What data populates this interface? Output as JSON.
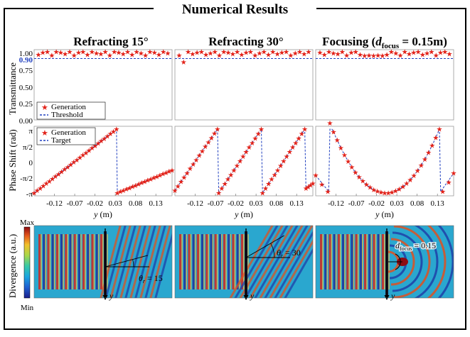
{
  "title": "Numerical Results",
  "columns": [
    {
      "title": "Refracting 15°"
    },
    {
      "title": "Refracting 30°"
    },
    {
      "title_main": "Focusing (",
      "title_sub": "focus",
      "title_rest": " = 0.15m)",
      "title_d": "d"
    }
  ],
  "transmittance": {
    "ylabel": "Transmittance",
    "yticks": [
      "0.00",
      "0.25",
      "0.50",
      "0.75",
      "1.00"
    ],
    "threshold_tick": "0.90",
    "threshold_value": 0.9,
    "legend": [
      "Generation",
      "Threshold"
    ],
    "colors": {
      "generation": "#e2231a",
      "threshold": "#1f3fbf"
    }
  },
  "phase": {
    "ylabel": "Phase Shift (rad)",
    "yticks": [
      "π",
      "π/2",
      "0",
      "-π/2",
      "-π"
    ],
    "legend": [
      "Generation",
      "Target"
    ],
    "xticks": [
      "-0.12",
      "-0.07",
      "-0.02",
      "0.03",
      "0.08",
      "0.13"
    ],
    "xlabel_var": "y",
    "xlabel_unit": " (m)"
  },
  "fields": {
    "colorbar_max": "Max",
    "colorbar_min": "Min",
    "colorbar_label": "Divergence (a.u.)",
    "axis_y": "y",
    "annotations": [
      {
        "theta": "θ",
        "sub": "r",
        "eq": " = 15"
      },
      {
        "theta": "θ",
        "sub": "r",
        "eq": " = 30"
      },
      {
        "d": "d",
        "sub": "focus",
        "eq": " = 0.15"
      }
    ]
  },
  "chart_data": [
    {
      "type": "scatter",
      "title": "Refracting 15° — Transmittance",
      "ylabel": "Transmittance",
      "ylim": [
        0,
        1
      ],
      "series": [
        {
          "name": "Generation",
          "values": [
            0.96,
            0.99,
            1.0,
            0.95,
            1.0,
            0.99,
            0.97,
            1.0,
            0.95,
            0.99,
            1.0,
            0.96,
            1.0,
            0.98,
            0.97,
            1.0,
            0.95,
            1.0,
            0.99,
            0.97,
            1.0,
            0.96,
            1.0,
            0.98,
            0.95,
            1.0,
            0.99,
            0.96,
            1.0,
            0.98
          ]
        },
        {
          "name": "Threshold",
          "values": [
            0.9
          ]
        }
      ]
    },
    {
      "type": "scatter",
      "title": "Refracting 30° — Transmittance",
      "ylabel": "Transmittance",
      "ylim": [
        0,
        1
      ],
      "series": [
        {
          "name": "Generation",
          "values": [
            0.95,
            0.85,
            1.0,
            0.97,
            0.99,
            1.0,
            0.96,
            0.98,
            1.0,
            0.95,
            1.0,
            0.99,
            0.97,
            1.0,
            0.96,
            0.99,
            1.0,
            0.95,
            0.98,
            1.0,
            0.96,
            1.0,
            0.97,
            0.99,
            1.0,
            0.95,
            0.98,
            1.0,
            0.97,
            1.0
          ]
        },
        {
          "name": "Threshold",
          "values": [
            0.9
          ]
        }
      ]
    },
    {
      "type": "scatter",
      "title": "Focusing — Transmittance",
      "ylabel": "Transmittance",
      "ylim": [
        0,
        1
      ],
      "series": [
        {
          "name": "Generation",
          "values": [
            0.99,
            0.96,
            1.0,
            0.98,
            0.97,
            1.0,
            0.95,
            0.99,
            1.0,
            0.96,
            0.94,
            0.95,
            0.94,
            0.95,
            0.94,
            0.96,
            1.0,
            0.98,
            0.95,
            1.0,
            0.97,
            0.99,
            1.0,
            0.96,
            0.98,
            1.0,
            0.95,
            0.99,
            1.0,
            0.97
          ]
        },
        {
          "name": "Threshold",
          "values": [
            0.9
          ]
        }
      ]
    },
    {
      "type": "line",
      "title": "Refracting 15° — Phase Shift",
      "xlabel": "y (m)",
      "ylabel": "Phase Shift (rad)",
      "xlim": [
        -0.17,
        0.17
      ],
      "ylim": [
        -3.1416,
        3.1416
      ],
      "wrap_points_x": [
        -0.17,
        0.035,
        0.17
      ],
      "series": [
        {
          "name": "Generation",
          "segments": [
            [
              -0.17,
              -3.14,
              0.033,
              3.14
            ],
            [
              0.035,
              -3.14,
              0.17,
              -0.9
            ]
          ]
        },
        {
          "name": "Target",
          "segments": [
            [
              -0.17,
              -3.14,
              0.033,
              3.14
            ],
            [
              0.035,
              -3.14,
              0.17,
              -0.9
            ]
          ]
        }
      ]
    },
    {
      "type": "line",
      "title": "Refracting 30° — Phase Shift",
      "xlabel": "y (m)",
      "ylabel": "Phase Shift (rad)",
      "xlim": [
        -0.17,
        0.17
      ],
      "ylim": [
        -3.1416,
        3.1416
      ],
      "series": [
        {
          "name": "Generation",
          "segments": [
            [
              -0.17,
              -2.9,
              -0.065,
              3.14
            ],
            [
              -0.062,
              -3.14,
              0.043,
              3.14
            ],
            [
              0.046,
              -3.14,
              0.15,
              3.14
            ],
            [
              0.153,
              -2.7,
              0.17,
              -2.2
            ]
          ]
        },
        {
          "name": "Target",
          "segments": [
            [
              -0.17,
              -2.9,
              -0.065,
              3.14
            ],
            [
              -0.062,
              -3.14,
              0.043,
              3.14
            ],
            [
              0.046,
              -3.14,
              0.15,
              3.14
            ],
            [
              0.153,
              -2.7,
              0.17,
              -2.2
            ]
          ]
        }
      ]
    },
    {
      "type": "line",
      "title": "Focusing — Phase Shift",
      "xlabel": "y (m)",
      "ylabel": "Phase Shift (rad)",
      "xlim": [
        -0.17,
        0.17
      ],
      "ylim": [
        -3.1416,
        3.1416
      ],
      "series": [
        {
          "name": "Generation",
          "shape": "parabola",
          "vertex_x": 0.003,
          "vertex_y": -3.14,
          "wrap_x": [
            -0.135,
            0.135
          ]
        },
        {
          "name": "Target",
          "shape": "parabola",
          "vertex_x": 0.003,
          "vertex_y": -3.14,
          "wrap_x": [
            -0.135,
            0.135
          ]
        }
      ]
    }
  ]
}
